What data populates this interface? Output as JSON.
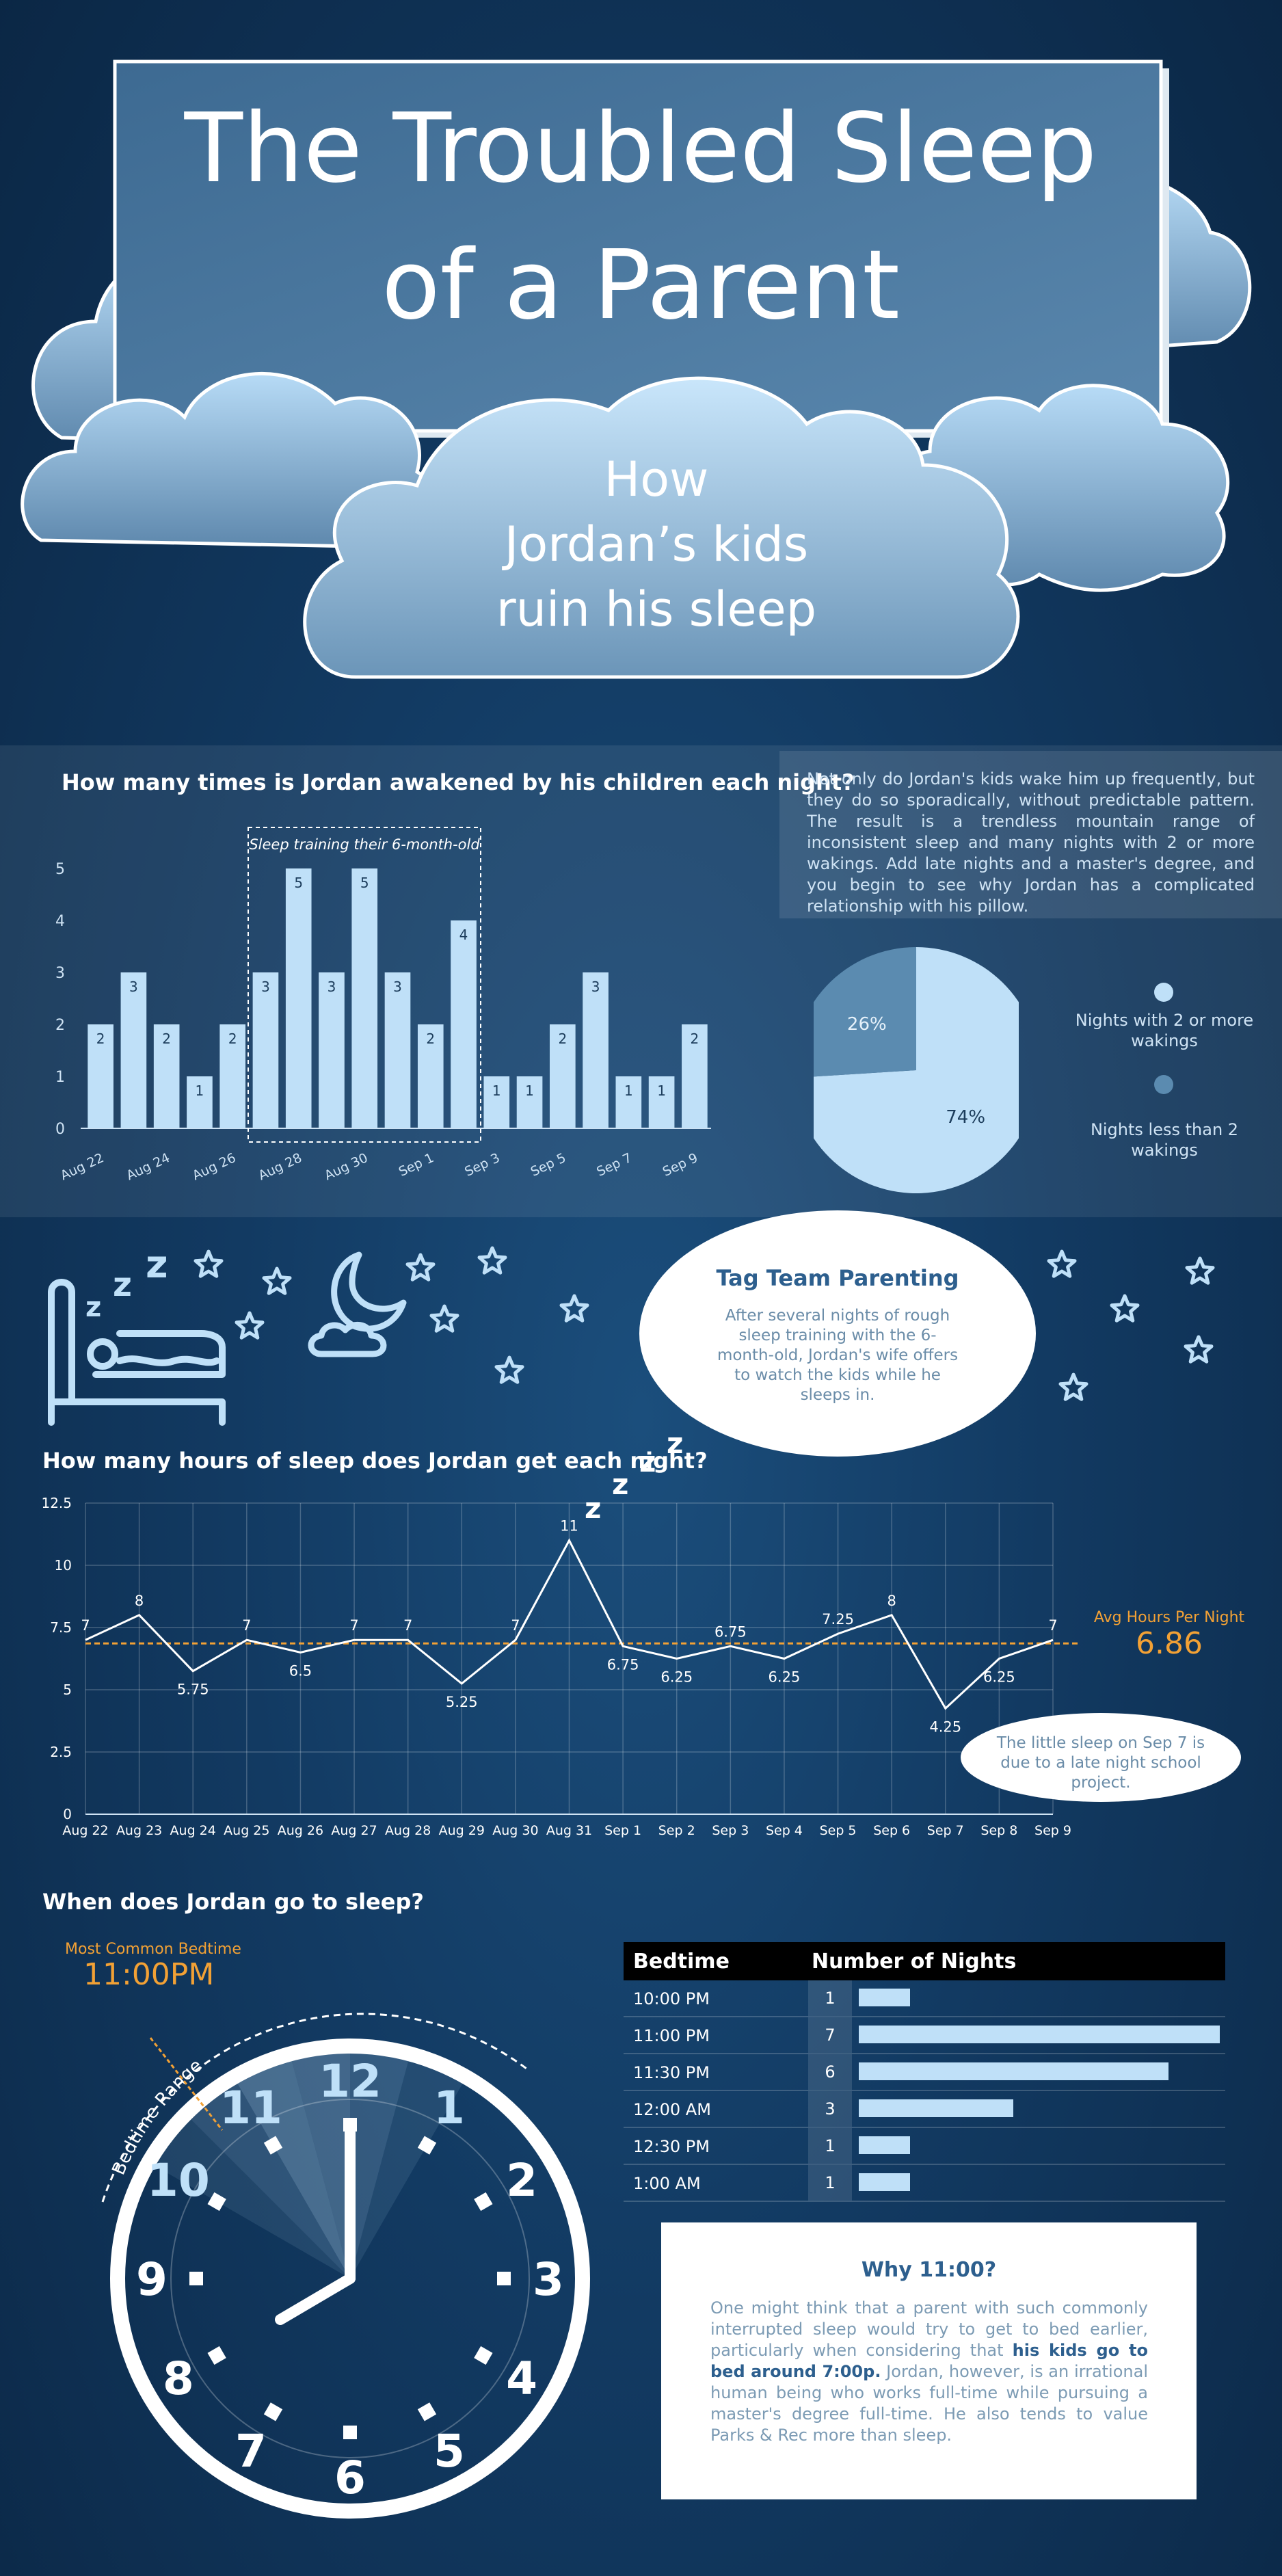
{
  "header": {
    "title_line1": "The Troubled Sleep",
    "title_line2": "of a Parent",
    "subtitle_line1": "How",
    "subtitle_line2": "Jordan’s kids",
    "subtitle_line3": "ruin his sleep"
  },
  "wakings": {
    "title": "How many times is Jordan awakened by his children each night?",
    "annotation": "Sleep training their 6-month-old",
    "description": "Not only do Jordan's kids wake him up frequently, but they do so sporadically, without predictable pattern. The result is a trendless mountain range of inconsistent sleep and many nights with 2 or more wakings. Add late nights and a master's degree, and you begin to see why Jordan has a complicated relationship with his pillow.",
    "legend": [
      {
        "label": "Nights with 2 or more wakings",
        "color": "#bfe0f8"
      },
      {
        "label": "Nights less than 2 wakings",
        "color": "#5b8bb0"
      }
    ]
  },
  "tagteam": {
    "title": "Tag Team Parenting",
    "body": "After several nights of rough sleep training with the 6-month-old, Jordan's wife offers to watch the kids while he sleeps in."
  },
  "hours": {
    "title": "How many hours of sleep does Jordan get each night?",
    "avg_label": "Avg Hours Per Night",
    "avg_value": "6.86",
    "note": "The little sleep on Sep 7 is due to a late night school project."
  },
  "bedtime": {
    "title": "When does Jordan go to sleep?",
    "common_label": "Most Common Bedtime",
    "common_value": "11:00PM",
    "range_label": "Bedtime Range",
    "table_headers": [
      "Bedtime",
      "Number of Nights"
    ],
    "rows": [
      {
        "time": "10:00 PM",
        "count": 1
      },
      {
        "time": "11:00 PM",
        "count": 7
      },
      {
        "time": "11:30 PM",
        "count": 6
      },
      {
        "time": "12:00 AM",
        "count": 3
      },
      {
        "time": "12:30 PM",
        "count": 1
      },
      {
        "time": "1:00 AM",
        "count": 1
      }
    ],
    "clock_numbers": [
      "12",
      "1",
      "2",
      "3",
      "4",
      "5",
      "6",
      "7",
      "8",
      "9",
      "10",
      "11"
    ]
  },
  "why": {
    "title": "Why 11:00?",
    "body_before": "One might think that a parent with such commonly interrupted sleep would try to get to bed earlier, particularly when considering that ",
    "body_bold": "his kids go to bed around 7:00p.",
    "body_after": " Jordan, however, is an irrational human being who works full-time while pursuing a master's degree full-time. He also tends to value Parks & Rec more than sleep."
  },
  "chart_data": [
    {
      "type": "bar",
      "title": "How many times is Jordan awakened by his children each night?",
      "categories": [
        "Aug 22",
        "Aug 23",
        "Aug 24",
        "Aug 25",
        "Aug 26",
        "Aug 27",
        "Aug 28",
        "Aug 29",
        "Aug 30",
        "Aug 31",
        "Sep 1",
        "Sep 2",
        "Sep 3",
        "Sep 4",
        "Sep 5",
        "Sep 6",
        "Sep 7",
        "Sep 8",
        "Sep 9"
      ],
      "tick_labels": [
        "Aug 22",
        "",
        "Aug 24",
        "",
        "Aug 26",
        "",
        "Aug 28",
        "",
        "Aug 30",
        "",
        "Sep 1",
        "",
        "Sep 3",
        "",
        "Sep 5",
        "",
        "Sep 7",
        "",
        "Sep 9"
      ],
      "values": [
        2,
        3,
        2,
        1,
        2,
        3,
        5,
        3,
        5,
        3,
        2,
        4,
        1,
        1,
        2,
        3,
        1,
        1,
        2
      ],
      "ylim": [
        0,
        5
      ],
      "yticks": [
        0,
        1,
        2,
        3,
        4,
        5
      ],
      "grid": false,
      "color": "#bfe0f8"
    },
    {
      "type": "pie",
      "labels": [
        "Nights with 2 or more wakings",
        "Nights less than 2 wakings"
      ],
      "values": [
        74,
        26
      ],
      "value_labels": [
        "74%",
        "26%"
      ],
      "colors": [
        "#bfe0f8",
        "#5b8bb0"
      ],
      "legend": "right"
    },
    {
      "type": "line",
      "title": "How many hours of sleep does Jordan get each night?",
      "x": [
        "Aug 22",
        "Aug 23",
        "Aug 24",
        "Aug 25",
        "Aug 26",
        "Aug 27",
        "Aug 28",
        "Aug 29",
        "Aug 30",
        "Aug 31",
        "Sep 1",
        "Sep 2",
        "Sep 3",
        "Sep 4",
        "Sep 5",
        "Sep 6",
        "Sep 7",
        "Sep 8",
        "Sep 9"
      ],
      "values": [
        7,
        8,
        5.75,
        7,
        6.5,
        7,
        7,
        5.25,
        7,
        11,
        6.75,
        6.25,
        6.75,
        6.25,
        7.25,
        8,
        4.25,
        6.25,
        7
      ],
      "point_labels": [
        "7",
        "8",
        "5.75",
        "7",
        "6.5",
        "7",
        "7",
        "5.25",
        "7",
        "11",
        "6.75",
        "6.25",
        "6.75",
        "6.25",
        "7.25",
        "8",
        "4.25",
        "6.25",
        "7"
      ],
      "ylim": [
        0,
        12.5
      ],
      "yticks": [
        0,
        2.5,
        5,
        7.5,
        10,
        12.5
      ],
      "ytick_labels": [
        "0",
        "2.5",
        "5",
        "7.5",
        "10",
        "12.5"
      ],
      "reference_line": 6.86,
      "grid": true,
      "color": "#ffffff",
      "reference_color": "#f2a135"
    }
  ]
}
